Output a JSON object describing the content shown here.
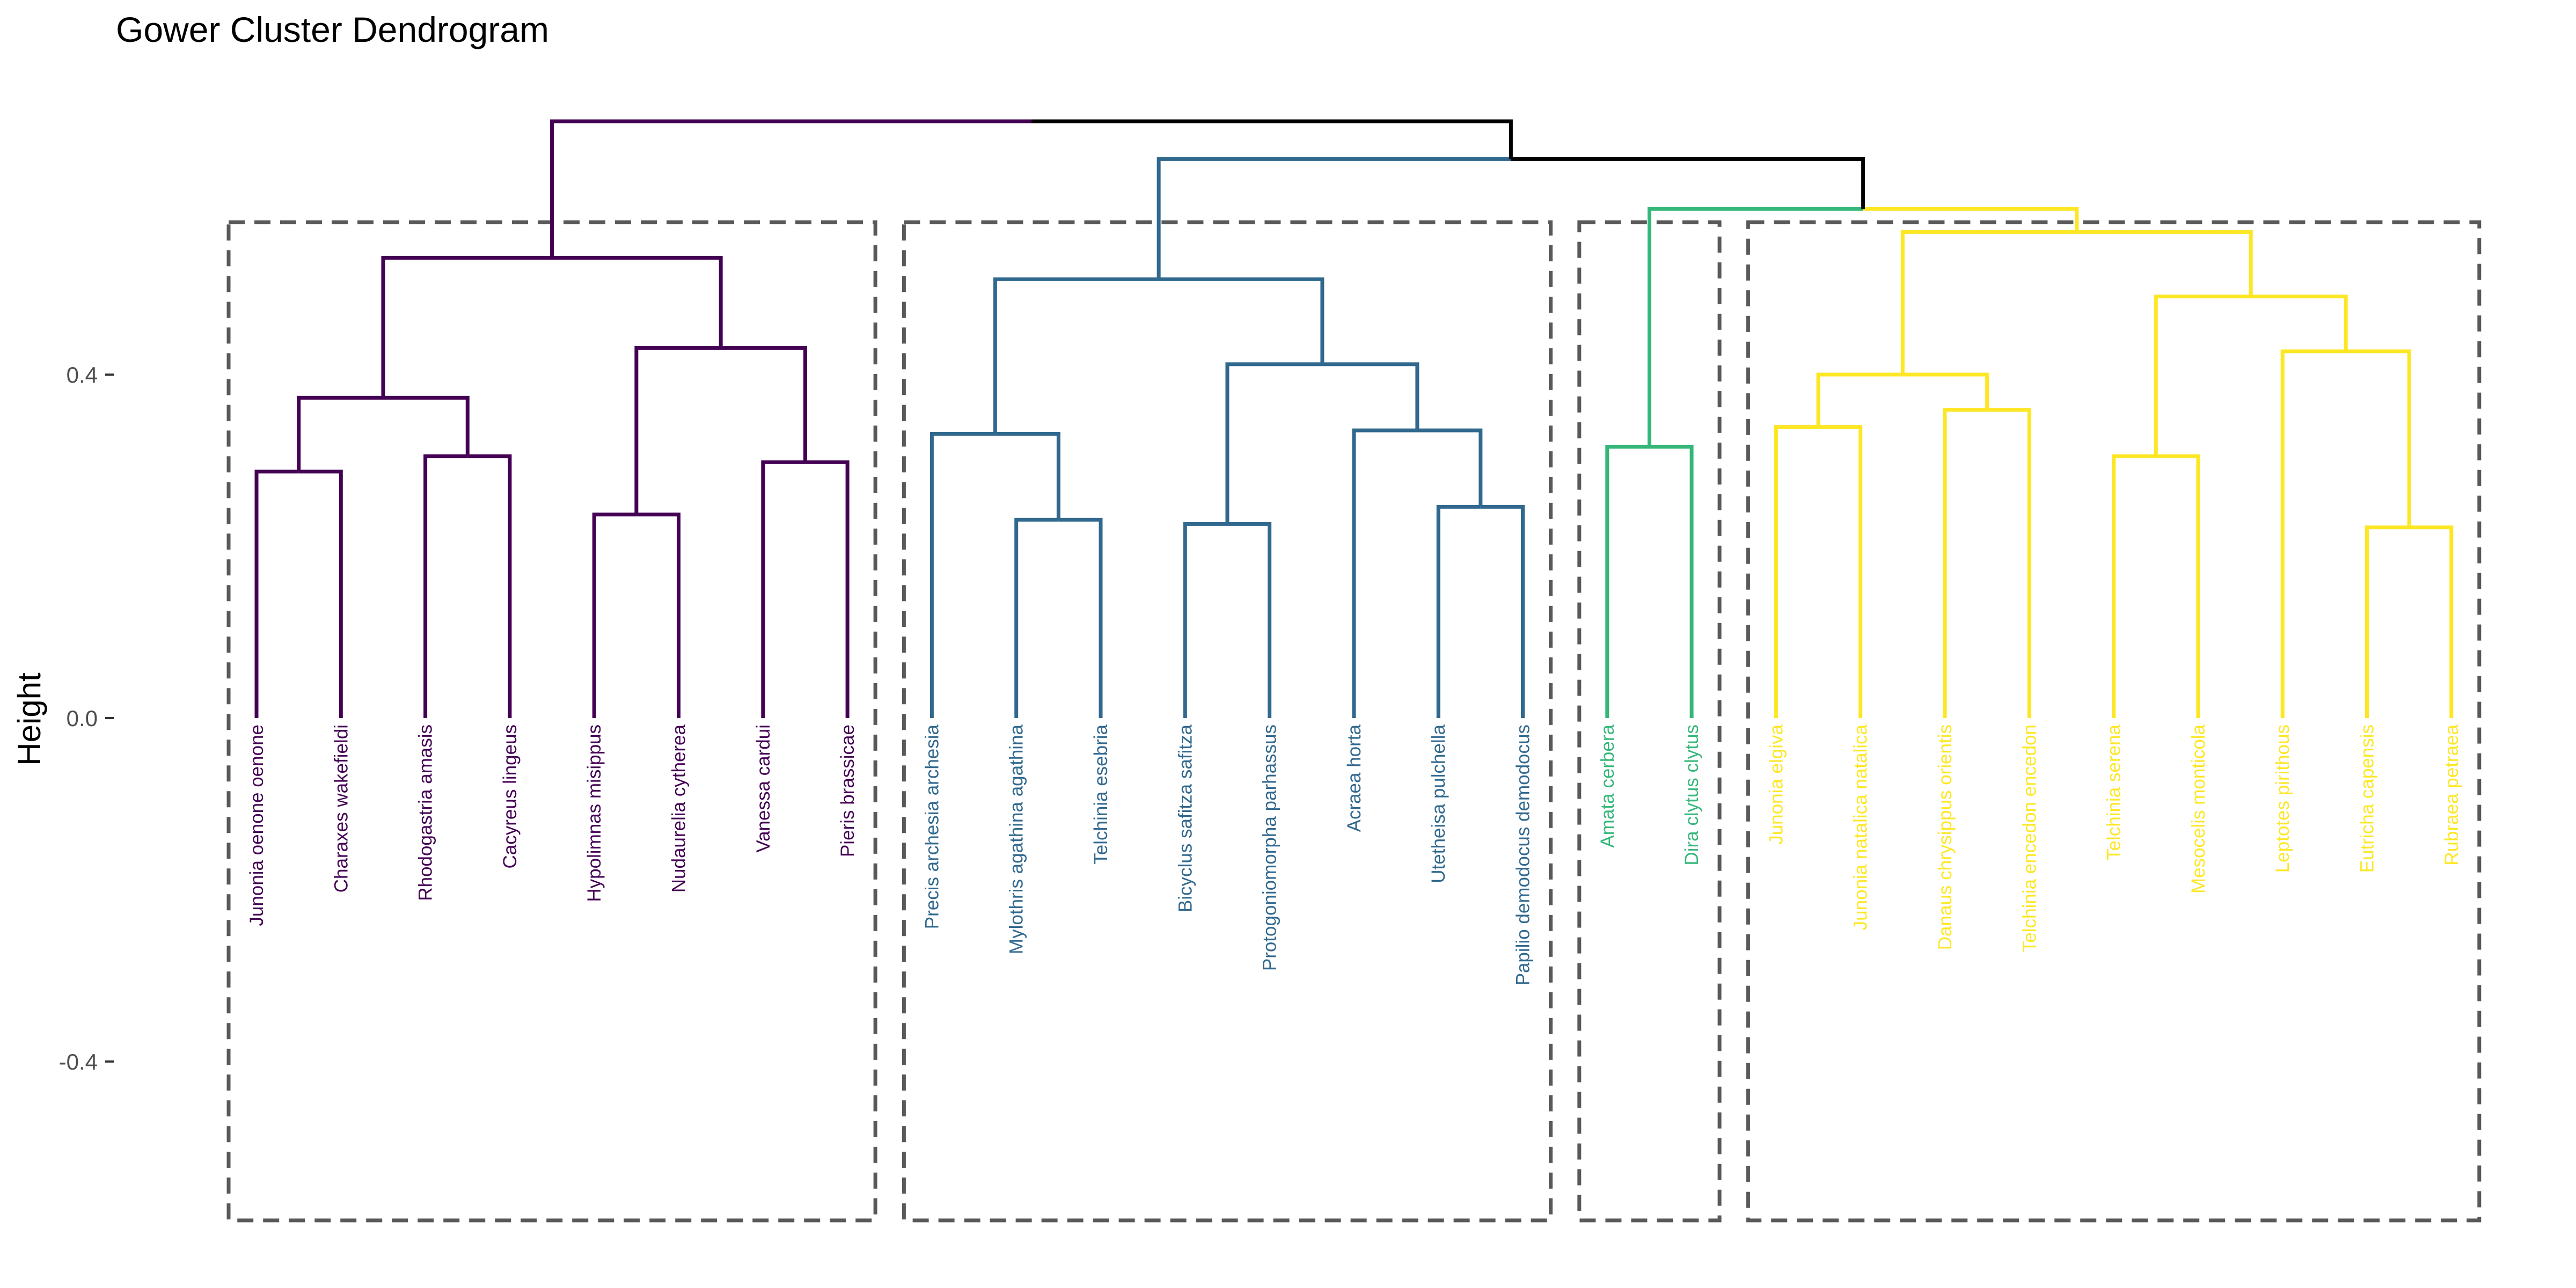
{
  "chart_data": {
    "type": "dendrogram",
    "title": "Gower Cluster Dendrogram",
    "xlabel": "",
    "ylabel": "Height",
    "ylim": [
      -0.58,
      0.72
    ],
    "yticks": [
      {
        "value": 0.4,
        "label": "0.4"
      },
      {
        "value": 0.0,
        "label": "0.0"
      },
      {
        "value": -0.4,
        "label": "-0.4"
      }
    ],
    "grid": false,
    "leaves": [
      {
        "label": "Junonia oenone oenone",
        "cluster": 1
      },
      {
        "label": "Charaxes wakefieldi",
        "cluster": 1
      },
      {
        "label": "Rhodogastria amasis",
        "cluster": 1
      },
      {
        "label": "Cacyreus lingeus",
        "cluster": 1
      },
      {
        "label": "Hypolimnas misippus",
        "cluster": 1
      },
      {
        "label": "Nudaurelia cytherea",
        "cluster": 1
      },
      {
        "label": "Vanessa cardui",
        "cluster": 1
      },
      {
        "label": "Pieris brassicae",
        "cluster": 1
      },
      {
        "label": "Precis archesia archesia",
        "cluster": 2
      },
      {
        "label": "Mylothris agathina agathina",
        "cluster": 2
      },
      {
        "label": "Telchinia esebria",
        "cluster": 2
      },
      {
        "label": "Bicyclus safitza safitza",
        "cluster": 2
      },
      {
        "label": "Protogoniomorpha parhassus",
        "cluster": 2
      },
      {
        "label": "Acraea horta",
        "cluster": 2
      },
      {
        "label": "Utetheisa pulchella",
        "cluster": 2
      },
      {
        "label": "Papilio demodocus demodocus",
        "cluster": 2
      },
      {
        "label": "Amata cerbera",
        "cluster": 3
      },
      {
        "label": "Dira clytus clytus",
        "cluster": 3
      },
      {
        "label": "Junonia elgiva",
        "cluster": 4
      },
      {
        "label": "Junonia natalica natalica",
        "cluster": 4
      },
      {
        "label": "Danaus chrysippus orientis",
        "cluster": 4
      },
      {
        "label": "Telchinia encedon encedon",
        "cluster": 4
      },
      {
        "label": "Telchinia serena",
        "cluster": 4
      },
      {
        "label": "Mesocelis monticola",
        "cluster": 4
      },
      {
        "label": "Leptotes pirithous",
        "cluster": 4
      },
      {
        "label": "Eutricha capensis",
        "cluster": 4
      },
      {
        "label": "Rubraea petraea",
        "cluster": 4
      }
    ],
    "merges": [
      {
        "left": "L0",
        "right": "L1",
        "height": 0.287
      },
      {
        "left": "L2",
        "right": "L3",
        "height": 0.305
      },
      {
        "left": "M0",
        "right": "M1",
        "height": 0.373
      },
      {
        "left": "L4",
        "right": "L5",
        "height": 0.237
      },
      {
        "left": "L6",
        "right": "L7",
        "height": 0.298
      },
      {
        "left": "M3",
        "right": "M4",
        "height": 0.431
      },
      {
        "left": "M2",
        "right": "M5",
        "height": 0.536
      },
      {
        "left": "L9",
        "right": "L10",
        "height": 0.231
      },
      {
        "left": "L8",
        "right": "M7",
        "height": 0.331
      },
      {
        "left": "L11",
        "right": "L12",
        "height": 0.226
      },
      {
        "left": "L14",
        "right": "L15",
        "height": 0.246
      },
      {
        "left": "L13",
        "right": "M10",
        "height": 0.335
      },
      {
        "left": "M9",
        "right": "M11",
        "height": 0.412
      },
      {
        "left": "M8",
        "right": "M12",
        "height": 0.511
      },
      {
        "left": "L16",
        "right": "L17",
        "height": 0.316
      },
      {
        "left": "L18",
        "right": "L19",
        "height": 0.339
      },
      {
        "left": "L20",
        "right": "L21",
        "height": 0.359
      },
      {
        "left": "M15",
        "right": "M16",
        "height": 0.4
      },
      {
        "left": "L22",
        "right": "L23",
        "height": 0.305
      },
      {
        "left": "L25",
        "right": "L26",
        "height": 0.222
      },
      {
        "left": "L24",
        "right": "M19",
        "height": 0.427
      },
      {
        "left": "M18",
        "right": "M20",
        "height": 0.491
      },
      {
        "left": "M17",
        "right": "M21",
        "height": 0.566
      },
      {
        "left": "M14",
        "right": "M22",
        "height": 0.593
      },
      {
        "left": "M13",
        "right": "M23",
        "height": 0.651
      },
      {
        "left": "M6",
        "right": "M24",
        "height": 0.695
      }
    ],
    "clusters": [
      {
        "id": 1,
        "color": "#440154"
      },
      {
        "id": 2,
        "color": "#31688E"
      },
      {
        "id": 3,
        "color": "#35B779"
      },
      {
        "id": 4,
        "color": "#FDE725"
      }
    ],
    "root_color": "#000000",
    "box_color": "#595959"
  }
}
